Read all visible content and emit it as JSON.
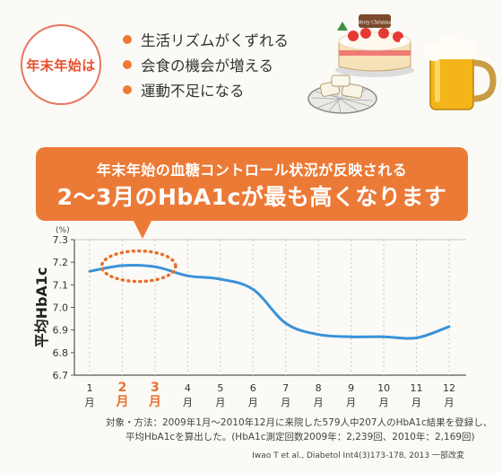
{
  "badge": {
    "label": "年末年始は"
  },
  "bullets": [
    {
      "text": "生活リズムがくずれる"
    },
    {
      "text": "会食の機会が増える"
    },
    {
      "text": "運動不足になる"
    }
  ],
  "illustration": {
    "cake_plate_text": "Merry Christmas"
  },
  "callout": {
    "line1": "年末年始の血糖コントロール状況が反映される",
    "line2": "2〜3月のHbA1cが最も高くなります"
  },
  "chart_data": {
    "type": "line",
    "title": "",
    "ylabel": "平均HbA1c",
    "yunit": "(%)",
    "ylim": [
      6.7,
      7.3
    ],
    "yticks": [
      "6.7",
      "6.8",
      "6.9",
      "7.0",
      "7.1",
      "7.2",
      "7.3"
    ],
    "categories": [
      "1月",
      "2月",
      "3月",
      "4月",
      "5月",
      "6月",
      "7月",
      "8月",
      "9月",
      "10月",
      "11月",
      "12月"
    ],
    "month_numbers": [
      "1",
      "2",
      "3",
      "4",
      "5",
      "6",
      "7",
      "8",
      "9",
      "10",
      "11",
      "12"
    ],
    "month_suffix": "月",
    "highlighted_months": [
      2,
      3
    ],
    "series": [
      {
        "values": [
          7.16,
          7.185,
          7.18,
          7.14,
          7.125,
          7.08,
          6.93,
          6.88,
          6.87,
          6.87,
          6.865,
          6.915
        ]
      }
    ],
    "grid": true,
    "colors": {
      "line": "#3a92d8",
      "highlight": "#e8702e",
      "grid": "#c8c8c8",
      "axis": "#555555"
    }
  },
  "footnote": {
    "line1": "対象・方法：2009年1月〜2010年12月に来院した579人中207人のHbA1c結果を登録し、",
    "line2": "平均HbA1cを算出した。(HbA1c測定回数2009年：2,239回、2010年：2,169回)"
  },
  "citation": "Iwao T et al., Diabetol Int4(3)173-178, 2013 一部改変"
}
